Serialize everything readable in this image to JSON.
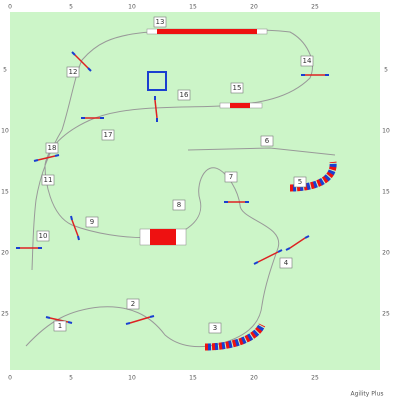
{
  "axes": {
    "top": [
      "0",
      "5",
      "10",
      "15",
      "20",
      "25"
    ],
    "bottom": [
      "0",
      "5",
      "10",
      "15",
      "20",
      "25"
    ],
    "left": [
      "5",
      "10",
      "15",
      "20",
      "25"
    ],
    "right": [
      "5",
      "10",
      "15",
      "20",
      "25"
    ]
  },
  "obstacles": [
    "1",
    "2",
    "3",
    "4",
    "5",
    "6",
    "7",
    "8",
    "9",
    "10",
    "11",
    "12",
    "13",
    "14",
    "15",
    "16",
    "17",
    "18"
  ],
  "footer": "Agility Plus"
}
